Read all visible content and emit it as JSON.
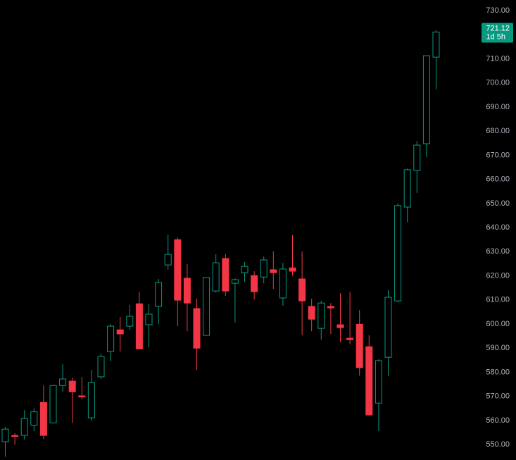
{
  "chart_data": {
    "type": "candlestick",
    "ylim": [
      543.6,
      734.4
    ],
    "yticks": [
      {
        "value": 550,
        "label": "550.00"
      },
      {
        "value": 560,
        "label": "560.00"
      },
      {
        "value": 570,
        "label": "570.00"
      },
      {
        "value": 580,
        "label": "580.00"
      },
      {
        "value": 590,
        "label": "590.00"
      },
      {
        "value": 600,
        "label": "600.00"
      },
      {
        "value": 610,
        "label": "610.00"
      },
      {
        "value": 620,
        "label": "620.00"
      },
      {
        "value": 630,
        "label": "630.00"
      },
      {
        "value": 640,
        "label": "640.00"
      },
      {
        "value": 650,
        "label": "650.00"
      },
      {
        "value": 660,
        "label": "660.00"
      },
      {
        "value": 670,
        "label": "670.00"
      },
      {
        "value": 680,
        "label": "680.00"
      },
      {
        "value": 690,
        "label": "690.00"
      },
      {
        "value": 700,
        "label": "700.00"
      },
      {
        "value": 710,
        "label": "710.00"
      },
      {
        "value": 720,
        "label": "720.00"
      },
      {
        "value": 730,
        "label": "730.00"
      }
    ],
    "up_color": "#089981",
    "down_color": "#f23645",
    "open": [
      551.2,
      553.8,
      553.8,
      558.0,
      567.5,
      559.0,
      574.5,
      576.3,
      570.2,
      561.1,
      578.1,
      588.6,
      597.6,
      599.1,
      608.4,
      599.7,
      607.3,
      624.5,
      635.0,
      619.0,
      606.4,
      595.3,
      613.7,
      627.2,
      616.9,
      621.3,
      620.1,
      619.5,
      622.5,
      610.8,
      623.3,
      618.7,
      607.3,
      598.2,
      607.3,
      599.7,
      594.1,
      599.9,
      590.6,
      567.2,
      586.2,
      609.6,
      648.5,
      663.7,
      674.8,
      710.7
    ],
    "high": [
      557.3,
      554.7,
      564.3,
      565.0,
      574.5,
      574.8,
      583.3,
      577.8,
      578.1,
      581.0,
      587.7,
      600.0,
      602.9,
      607.9,
      613.4,
      608.2,
      618.7,
      637.1,
      635.9,
      624.8,
      610.5,
      619.3,
      628.9,
      629.2,
      619.0,
      625.7,
      621.9,
      628.0,
      630.1,
      625.4,
      636.8,
      630.1,
      610.5,
      609.6,
      608.7,
      612.8,
      613.4,
      605.8,
      595.3,
      585.4,
      614.0,
      650.0,
      664.5,
      675.9,
      711.3,
      721.8
    ],
    "low": [
      545.0,
      550.0,
      552.1,
      555.6,
      552.3,
      558.9,
      571.9,
      559.0,
      568.7,
      559.9,
      577.2,
      584.5,
      588.6,
      597.6,
      589.7,
      590.3,
      600.0,
      622.5,
      599.1,
      597.0,
      581.0,
      595.3,
      613.1,
      611.7,
      600.6,
      617.5,
      610.2,
      616.9,
      614.6,
      607.6,
      620.1,
      595.3,
      597.0,
      593.5,
      595.9,
      592.4,
      591.8,
      578.6,
      562.0,
      555.6,
      578.4,
      609.0,
      642.3,
      654.3,
      669.2,
      697.3
    ],
    "close": [
      556.4,
      553.5,
      560.8,
      563.6,
      553.8,
      574.5,
      577.2,
      571.9,
      570.0,
      575.7,
      586.5,
      599.1,
      595.9,
      603.2,
      589.7,
      604.1,
      617.2,
      628.9,
      609.9,
      608.7,
      590.0,
      619.3,
      625.4,
      613.7,
      618.4,
      623.9,
      613.4,
      626.6,
      621.3,
      622.8,
      621.9,
      609.6,
      602.0,
      608.7,
      606.7,
      598.5,
      593.5,
      581.9,
      562.3,
      584.8,
      611.1,
      649.1,
      664.0,
      674.2,
      711.3,
      721.12
    ],
    "last_price": 721.12,
    "countdown": "1d 5h"
  }
}
